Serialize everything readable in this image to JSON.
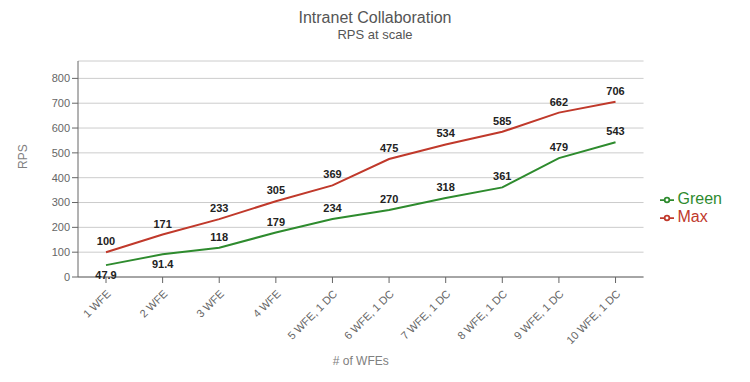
{
  "chart_data": {
    "type": "line",
    "title": "Intranet Collaboration",
    "subtitle": "RPS at scale",
    "x_label": "# of WFEs",
    "y_label": "RPS",
    "categories": [
      "1 WFE",
      "2 WFE",
      "3 WFE",
      "4 WFE",
      "5 WFE, 1 DC",
      "6 WFE, 1 DC",
      "7 WFE, 1 DC",
      "8 WFE, 1 DC",
      "9 WFE, 1 DC",
      "10 WFE, 1 DC"
    ],
    "series": [
      {
        "name": "Green",
        "color": "#2e8b2e",
        "values": [
          47.9,
          91.4,
          118,
          179,
          234,
          270,
          318,
          361,
          479,
          543
        ]
      },
      {
        "name": "Max",
        "color": "#c0392b",
        "values": [
          100,
          171,
          233,
          305,
          369,
          475,
          534,
          585,
          662,
          706
        ]
      }
    ],
    "ylim": [
      0,
      870
    ],
    "yticks": [
      0,
      100,
      200,
      300,
      400,
      500,
      600,
      700,
      800
    ],
    "grid": true,
    "legend": "right",
    "data_labels": true
  }
}
